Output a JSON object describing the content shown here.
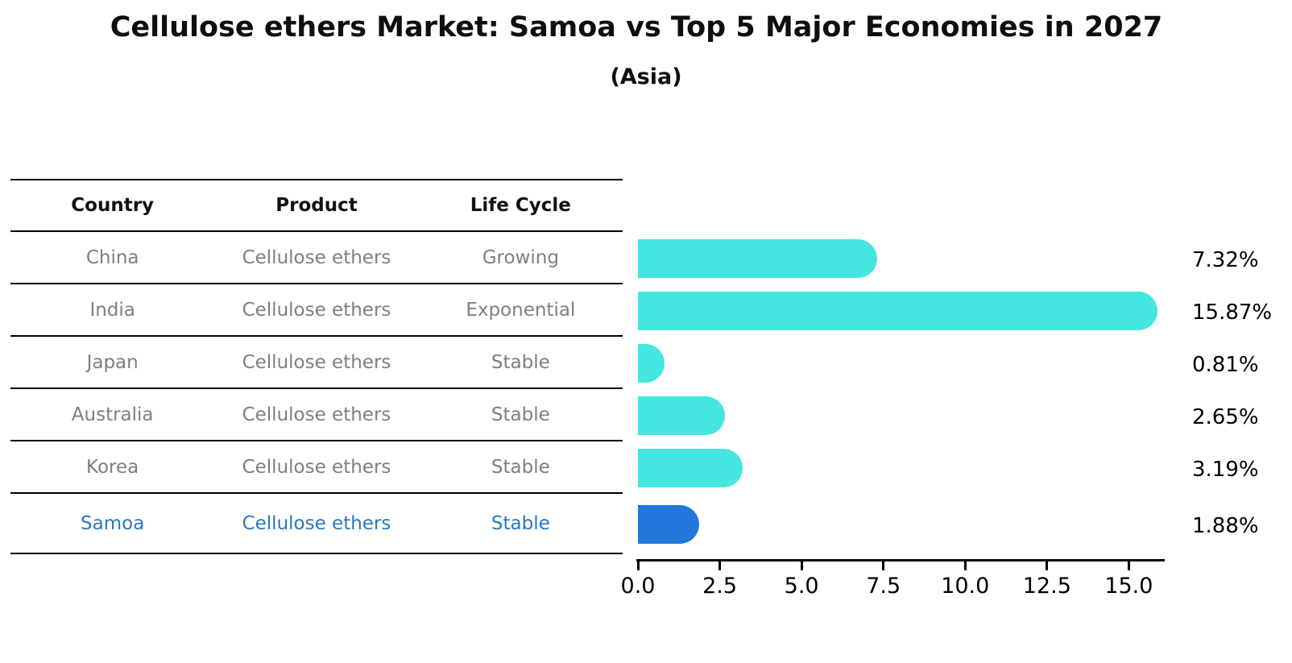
{
  "title": "Cellulose ethers Market: Samoa vs Top 5 Major Economies in 2027",
  "subtitle": "(Asia)",
  "table": {
    "headers": [
      "Country",
      "Product",
      "Life Cycle"
    ],
    "rows": [
      {
        "country": "China",
        "product": "Cellulose ethers",
        "life_cycle": "Growing",
        "highlight": false
      },
      {
        "country": "India",
        "product": "Cellulose ethers",
        "life_cycle": "Exponential",
        "highlight": false
      },
      {
        "country": "Japan",
        "product": "Cellulose ethers",
        "life_cycle": "Stable",
        "highlight": false
      },
      {
        "country": "Australia",
        "product": "Cellulose ethers",
        "life_cycle": "Stable",
        "highlight": false
      },
      {
        "country": "Korea",
        "product": "Cellulose ethers",
        "life_cycle": "Stable",
        "highlight": false
      },
      {
        "country": "Samoa",
        "product": "Cellulose ethers",
        "life_cycle": "Stable",
        "highlight": true
      }
    ]
  },
  "chart_data": {
    "type": "bar",
    "orientation": "horizontal",
    "title": "Cellulose ethers Market: Samoa vs Top 5 Major Economies in 2027 (Asia)",
    "categories": [
      "China",
      "India",
      "Japan",
      "Australia",
      "Korea",
      "Samoa"
    ],
    "values": [
      7.32,
      15.87,
      0.81,
      2.65,
      3.19,
      1.88
    ],
    "value_labels": [
      "7.32%",
      "15.87%",
      "0.81%",
      "2.65%",
      "3.19%",
      "1.88%"
    ],
    "x_ticks": [
      0.0,
      2.5,
      5.0,
      7.5,
      10.0,
      12.5,
      15.0
    ],
    "x_tick_labels": [
      "0.0",
      "2.5",
      "5.0",
      "7.5",
      "10.0",
      "12.5",
      "15.0"
    ],
    "xlim": [
      0,
      16
    ],
    "grid": false,
    "legend": false,
    "highlight_index": 5,
    "bar_color": "#45e6e0",
    "highlight_color": "#2277dc",
    "highlight_border_style": "dotted",
    "highlight_text_color": "#2878be",
    "table_text_color": "#7f7f7f"
  }
}
